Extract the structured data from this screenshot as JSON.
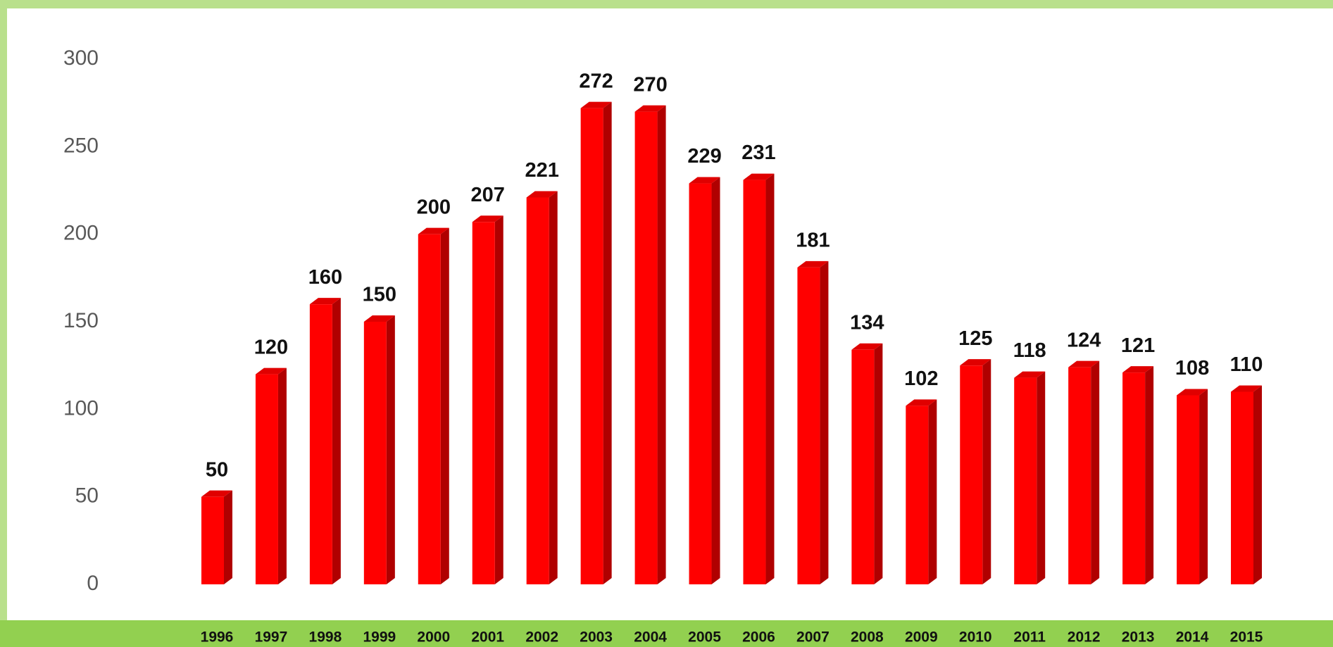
{
  "chart_data": {
    "type": "bar",
    "categories": [
      "1996",
      "1997",
      "1998",
      "1999",
      "2000",
      "2001",
      "2002",
      "2003",
      "2004",
      "2005",
      "2006",
      "2007",
      "2008",
      "2009",
      "2010",
      "2011",
      "2012",
      "2013",
      "2014",
      "2015"
    ],
    "values": [
      50,
      120,
      160,
      150,
      200,
      207,
      221,
      272,
      270,
      229,
      231,
      181,
      134,
      102,
      125,
      118,
      124,
      121,
      108,
      110
    ],
    "color": "#ff0000",
    "ylim": [
      0,
      300
    ],
    "yticks": [
      0,
      50,
      100,
      150,
      200,
      250,
      300
    ],
    "grid": false
  }
}
